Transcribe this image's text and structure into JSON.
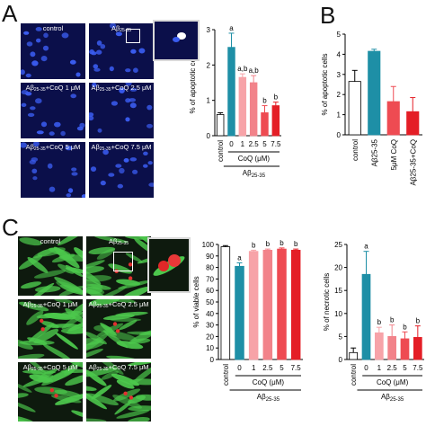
{
  "panels": {
    "A": {
      "label": "A"
    },
    "B": {
      "label": "B"
    },
    "C": {
      "label": "C"
    }
  },
  "images_A": [
    {
      "caption": "control"
    },
    {
      "caption": "Aβ",
      "sub": "25-35"
    },
    {
      "caption": "Aβ",
      "sub": "25-35",
      "rest": "+CoQ 1 μM"
    },
    {
      "caption": "Aβ",
      "sub": "25-35",
      "rest": "+CoQ 2.5 μM"
    },
    {
      "caption": "Aβ",
      "sub": "25-35",
      "rest": "+CoQ 5 μM"
    },
    {
      "caption": "Aβ",
      "sub": "25-35",
      "rest": "+CoQ 7.5 μM"
    }
  ],
  "images_C": [
    {
      "caption": "control"
    },
    {
      "caption": "Aβ",
      "sub": "25-35"
    },
    {
      "caption": "Aβ",
      "sub": "25-35",
      "rest": "+CoQ 1 μM"
    },
    {
      "caption": "Aβ",
      "sub": "25-35",
      "rest": "+CoQ 2.5 μM"
    },
    {
      "caption": "Aβ",
      "sub": "25-35",
      "rest": "+CoQ 5 μM"
    },
    {
      "caption": "Aβ",
      "sub": "25-35",
      "rest": "+CoQ 7.5 μM"
    }
  ],
  "colors": {
    "control": "#ffffff",
    "abeta": "#1e8fa6",
    "coq1": "#f7a3a8",
    "coq2_5": "#f2838a",
    "coq5": "#ee4b52",
    "coq7_5": "#e41e26"
  },
  "chart_data": [
    {
      "id": "A",
      "type": "bar",
      "ylabel": "% of apoptotic cells",
      "ylim": [
        0,
        3
      ],
      "yticks": [
        "0",
        "1",
        "2",
        "3"
      ],
      "categories": [
        "control",
        "0",
        "1",
        "2.5",
        "5",
        "7.5"
      ],
      "values": [
        0.6,
        2.5,
        1.65,
        1.5,
        0.65,
        0.85
      ],
      "errors": [
        0.05,
        0.4,
        0.1,
        0.2,
        0.2,
        0.1
      ],
      "letters": [
        "",
        "a",
        "a,b",
        "a,b",
        "b",
        "b"
      ],
      "group_label": "CoQ (μM)",
      "group2_label": "Aβ",
      "group2_sub": "25-35"
    },
    {
      "id": "B",
      "type": "bar",
      "ylabel": "% of apoptotic cells",
      "ylim": [
        0,
        5
      ],
      "yticks": [
        "0",
        "1",
        "2",
        "3",
        "4",
        "5"
      ],
      "categories": [
        "control",
        "Aβ25-35",
        "5μM CoQ",
        "Aβ25-35+CoQ"
      ],
      "values": [
        2.65,
        4.15,
        1.65,
        1.15
      ],
      "errors": [
        0.55,
        0.1,
        0.75,
        0.7
      ],
      "letters": [
        "",
        "",
        "",
        ""
      ],
      "group_label": "",
      "group2_label": "",
      "group2_sub": ""
    },
    {
      "id": "C1",
      "type": "bar",
      "ylabel": "% of viable cells",
      "ylim": [
        0,
        100
      ],
      "yticks": [
        "0",
        "10",
        "20",
        "30",
        "40",
        "50",
        "60",
        "70",
        "80",
        "90",
        "100"
      ],
      "categories": [
        "control",
        "0",
        "1",
        "2.5",
        "5",
        "7.5"
      ],
      "values": [
        98,
        81,
        94,
        95,
        96,
        95
      ],
      "errors": [
        1,
        3,
        1,
        1,
        1,
        1
      ],
      "letters": [
        "",
        "a",
        "b",
        "b",
        "b",
        "b"
      ],
      "group_label": "CoQ (μM)",
      "group2_label": "Aβ",
      "group2_sub": "25-35"
    },
    {
      "id": "C2",
      "type": "bar",
      "ylabel": "% of necrotic cells",
      "ylim": [
        0,
        25
      ],
      "yticks": [
        "0",
        "5",
        "10",
        "15",
        "20",
        "25"
      ],
      "categories": [
        "control",
        "0",
        "1",
        "2.5",
        "5",
        "7.5"
      ],
      "values": [
        1.5,
        18.5,
        5.8,
        5.0,
        4.5,
        4.8
      ],
      "errors": [
        1,
        5,
        1.2,
        2.5,
        1.5,
        2.5
      ],
      "letters": [
        "",
        "a",
        "b",
        "b",
        "b",
        "b"
      ],
      "group_label": "CoQ (μM)",
      "group2_label": "Aβ",
      "group2_sub": "25-35"
    }
  ]
}
